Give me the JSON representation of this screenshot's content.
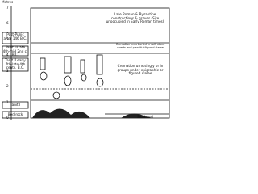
{
  "scale": {
    "unit": "Metres",
    "labels": [
      "7",
      "6",
      "5",
      "4",
      "3",
      "2",
      "1",
      "0"
    ]
  },
  "periods": [
    {
      "label": "Post-Punic after 146 B.C."
    },
    {
      "label": "Tanit III late 4th-mid 2nd c. B.C."
    },
    {
      "label": "Tanit II early 7th-late 4th cents. B.C."
    },
    {
      "label": "Tanit I"
    },
    {
      "label": "Bed-rock"
    }
  ],
  "notes": {
    "upper": "Late Roman & Byzantine constructions & graves (Site unoccupied in Early Roman times)",
    "tanit3": "Cremation urns buried in soil, stone chests and plentiful figured stelae",
    "tanit2": "Cremation urns singly or in groups under epigraphic or figured stelae",
    "sea": "Sea Level"
  }
}
